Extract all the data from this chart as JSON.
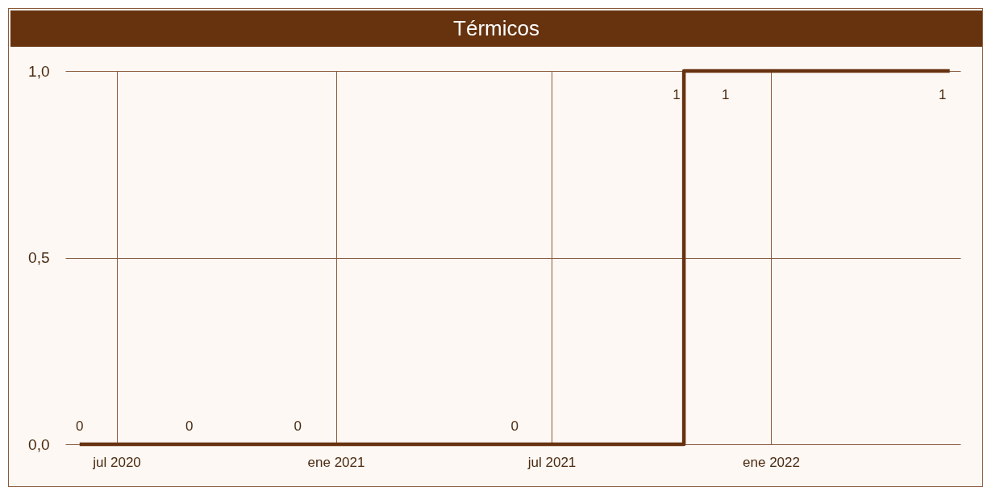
{
  "chart_data": {
    "type": "step",
    "title": "Térmicos",
    "x": [
      "2020-05-31",
      "2020-08-31",
      "2020-11-30",
      "2021-05-31",
      "2021-10-20",
      "2021-11-30",
      "2022-05-31"
    ],
    "series": [
      {
        "color": "#663210",
        "values": [
          0,
          0,
          0,
          0,
          1,
          1,
          1
        ]
      }
    ],
    "xlim": [
      "2020-05-19",
      "2022-06-09"
    ],
    "xticks": [
      {
        "value": "2020-07-01",
        "label": "jul 2020"
      },
      {
        "value": "2021-01-01",
        "label": "ene 2021"
      },
      {
        "value": "2021-07-01",
        "label": "jul 2021"
      },
      {
        "value": "2022-01-01",
        "label": "ene 2022"
      }
    ],
    "ylim": [
      0,
      1
    ],
    "yticks": [
      {
        "value": 0,
        "label": "0,0"
      },
      {
        "value": 0.5,
        "label": "0,5"
      },
      {
        "value": 1,
        "label": "1,0"
      }
    ],
    "grid": true,
    "data_labels": true,
    "line_style": "solid"
  }
}
